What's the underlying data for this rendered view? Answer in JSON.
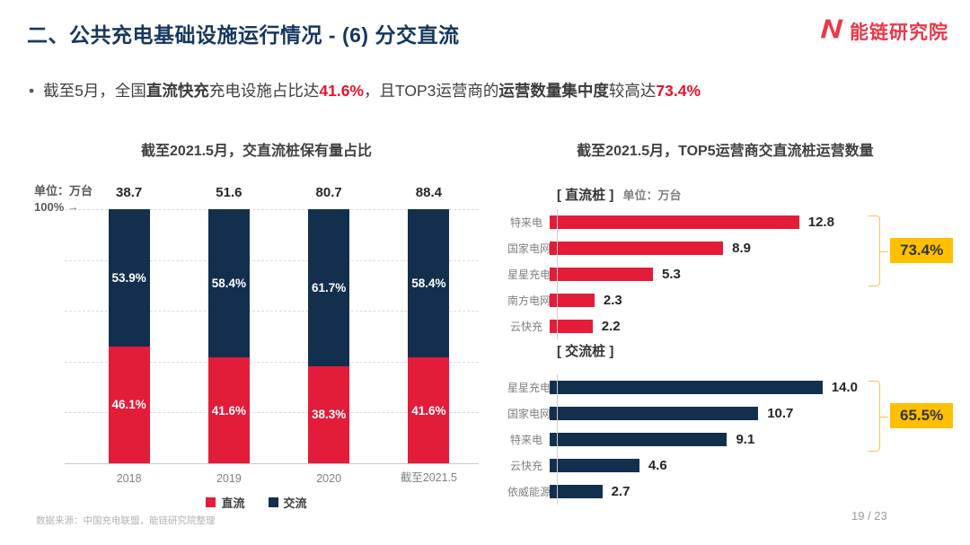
{
  "header": {
    "title": "二、公共充电基础设施运行情况 - (6) 分交直流",
    "logo_text": "能链研究院"
  },
  "bullet": {
    "marker": "•",
    "segments": [
      {
        "text": "截至5月，全国",
        "bold": false,
        "red": false
      },
      {
        "text": "直流快充",
        "bold": true,
        "red": false
      },
      {
        "text": "充电设施占比达",
        "bold": false,
        "red": false
      },
      {
        "text": "41.6%",
        "bold": true,
        "red": true
      },
      {
        "text": "，且TOP3运营商的",
        "bold": false,
        "red": false
      },
      {
        "text": "运营数量集中度",
        "bold": true,
        "red": false
      },
      {
        "text": "较高达",
        "bold": false,
        "red": false
      },
      {
        "text": "73.4%",
        "bold": true,
        "red": true
      }
    ]
  },
  "right_panel_title": "截至2021.5月，TOP5运营商交直流桩运营数量",
  "chart_data": [
    {
      "type": "bar",
      "subtype": "stacked-100-percent",
      "orientation": "vertical",
      "title": "截至2021.5月，交直流桩保有量占比",
      "unit_label": "单位：万台",
      "axis_label": "100% →",
      "categories": [
        "2018",
        "2019",
        "2020",
        "截至2021.5"
      ],
      "totals": [
        "38.7",
        "51.6",
        "80.7",
        "88.4"
      ],
      "series": [
        {
          "name": "直流",
          "color": "#e31c3a",
          "values_pct": [
            46.1,
            41.6,
            38.3,
            41.6
          ]
        },
        {
          "name": "交流",
          "color": "#132f4e",
          "values_pct": [
            53.9,
            58.4,
            61.7,
            58.4
          ]
        }
      ],
      "ylim": [
        0,
        100
      ],
      "gridlines": "horizontal dashed at 0/20/40/60/80/100%",
      "legend_position": "bottom"
    },
    {
      "type": "bar",
      "orientation": "horizontal",
      "section_label": "[ 直流桩 ]",
      "unit_label": "单位：万台",
      "bar_color": "#e31c3a",
      "categories": [
        "特来电",
        "国家电网",
        "星星充电",
        "南方电网",
        "云快充"
      ],
      "values": [
        12.8,
        8.9,
        5.3,
        2.3,
        2.2
      ],
      "value_labels": [
        "12.8",
        "8.9",
        "5.3",
        "2.3",
        "2.2"
      ],
      "highlight": {
        "label": "73.4%",
        "rows_spanned": 3
      }
    },
    {
      "type": "bar",
      "orientation": "horizontal",
      "section_label": "[ 交流桩 ]",
      "unit_label": "",
      "bar_color": "#132f4e",
      "categories": [
        "星星充电",
        "国家电网",
        "特来电",
        "云快充",
        "依威能源"
      ],
      "values": [
        14.0,
        10.7,
        9.1,
        4.6,
        2.7
      ],
      "value_labels": [
        "14.0",
        "10.7",
        "9.1",
        "4.6",
        "2.7"
      ],
      "highlight": {
        "label": "65.5%",
        "rows_spanned": 3
      }
    }
  ],
  "footer": {
    "source": "数据来源：中国充电联盟，能链研究院整理",
    "page": "19 / 23"
  },
  "colors": {
    "dc_red": "#e31c3a",
    "ac_navy": "#132f4e",
    "highlight_yellow": "#ffc000",
    "bracket_gold": "#f3c64b",
    "title_navy": "#17375e",
    "logo_red": "#e8394a",
    "accent_red_text": "#e8112d"
  }
}
